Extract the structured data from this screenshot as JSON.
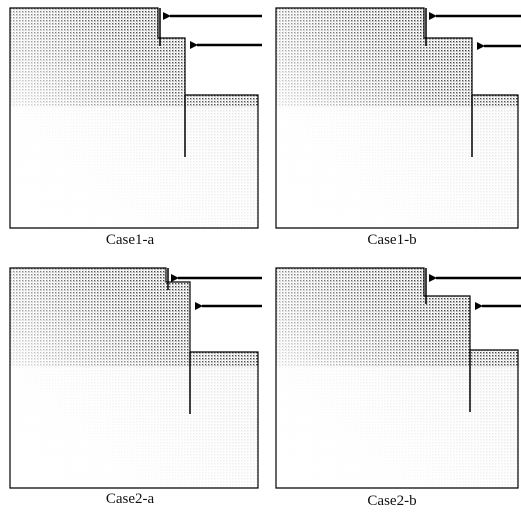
{
  "panels": [
    {
      "label": "Case1-a"
    },
    {
      "label": "Case1-b"
    },
    {
      "label": "Case2-a"
    },
    {
      "label": "Case2-b"
    }
  ]
}
